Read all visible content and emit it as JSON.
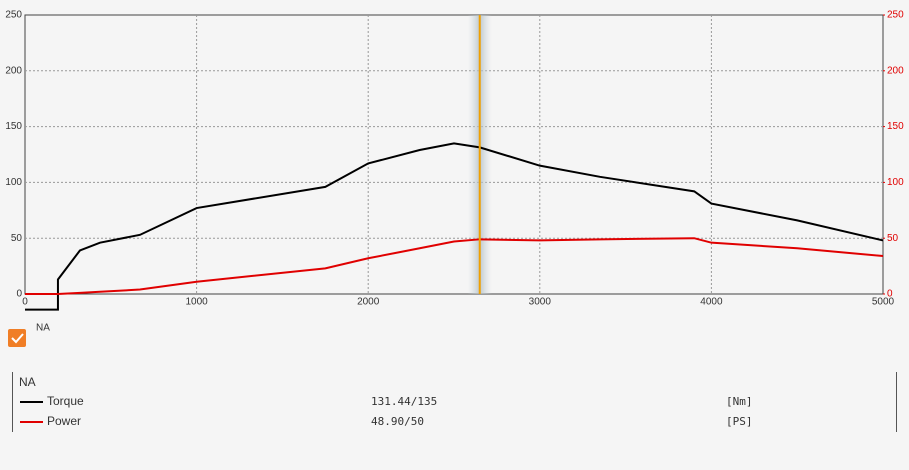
{
  "chart_data": {
    "type": "line",
    "x": [
      0,
      192,
      192,
      320,
      437,
      670,
      1000,
      1750,
      2000,
      2300,
      2500,
      2650,
      3000,
      3350,
      3900,
      4000,
      4500,
      5000
    ],
    "series": [
      {
        "name": "Torque",
        "color": "#000000",
        "values": [
          -14,
          -14,
          13,
          39,
          46,
          53,
          77,
          96,
          117,
          129,
          135,
          131.4,
          115,
          105,
          92,
          81,
          66,
          48
        ]
      },
      {
        "name": "Power",
        "color": "#e00000",
        "axis": "y2",
        "values": [
          0,
          0,
          0,
          1,
          2,
          4,
          11,
          23,
          32,
          41,
          47,
          49,
          48,
          49,
          50,
          46,
          41,
          34
        ]
      }
    ],
    "xlim": [
      0,
      5000
    ],
    "xticks": [
      0,
      1000,
      2000,
      3000,
      4000,
      5000
    ],
    "ylim": [
      0,
      250
    ],
    "yticks": [
      0,
      50,
      100,
      150,
      200,
      250
    ],
    "y2lim": [
      0,
      250
    ],
    "y2ticks": [
      0,
      50,
      100,
      150,
      200,
      250
    ],
    "y2color": "#e00000",
    "grid": true,
    "cursor_x": 2650,
    "cursor_color": "#f0a000"
  },
  "checkbox": {
    "label": "NA",
    "checked": true
  },
  "readout": {
    "title": "NA",
    "rows": [
      {
        "value": "131.44/135",
        "unit": "[Nm]"
      },
      {
        "value": "48.90/50",
        "unit": "[PS]"
      }
    ]
  }
}
